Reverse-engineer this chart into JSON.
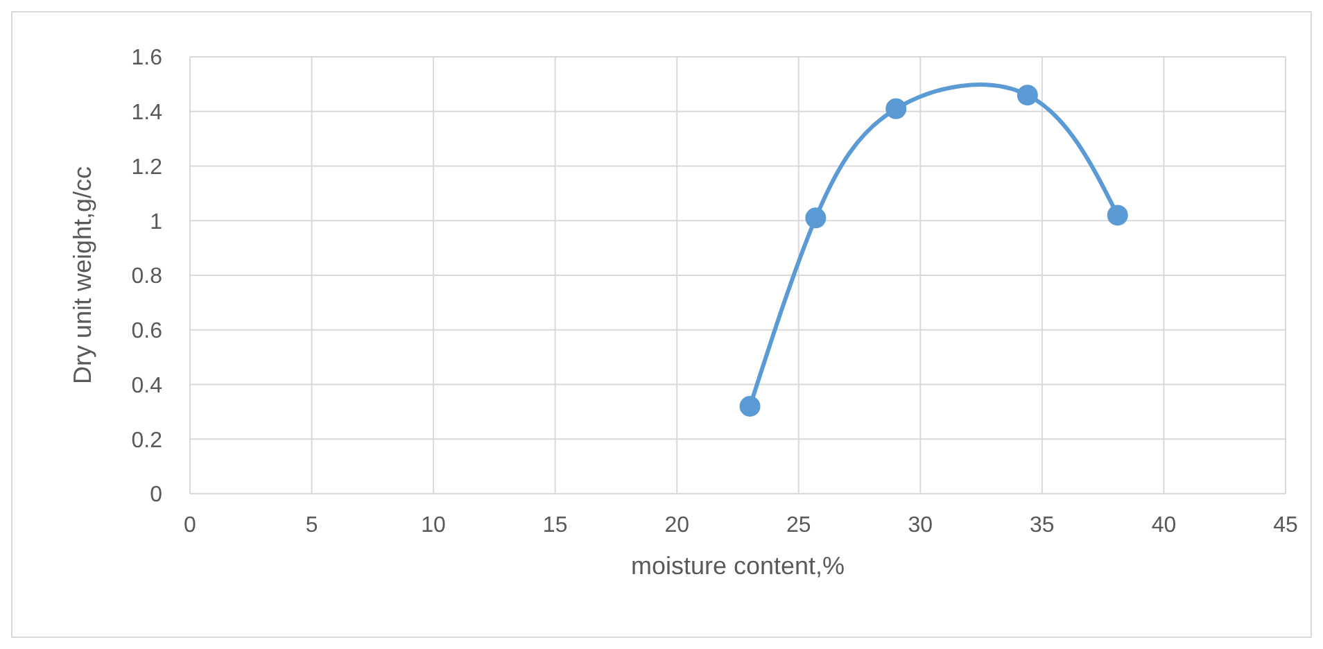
{
  "chart_data": {
    "type": "line",
    "xlabel": "moisture content,%",
    "ylabel": "Dry unit weight,g/cc",
    "x": [
      23.0,
      25.7,
      29.0,
      34.4,
      38.1
    ],
    "series": [
      {
        "color": "#5b9bd5",
        "values": [
          0.32,
          1.01,
          1.41,
          1.46,
          1.02
        ]
      }
    ],
    "xlim": [
      0,
      45
    ],
    "xticks": [
      0,
      5,
      10,
      15,
      20,
      25,
      30,
      35,
      40,
      45
    ],
    "ylim": [
      0,
      1.6
    ],
    "yticks": [
      0,
      0.2,
      0.4,
      0.6,
      0.8,
      1,
      1.2,
      1.4,
      1.6
    ],
    "grid": true,
    "marker": "circle",
    "line_style": "solid"
  }
}
